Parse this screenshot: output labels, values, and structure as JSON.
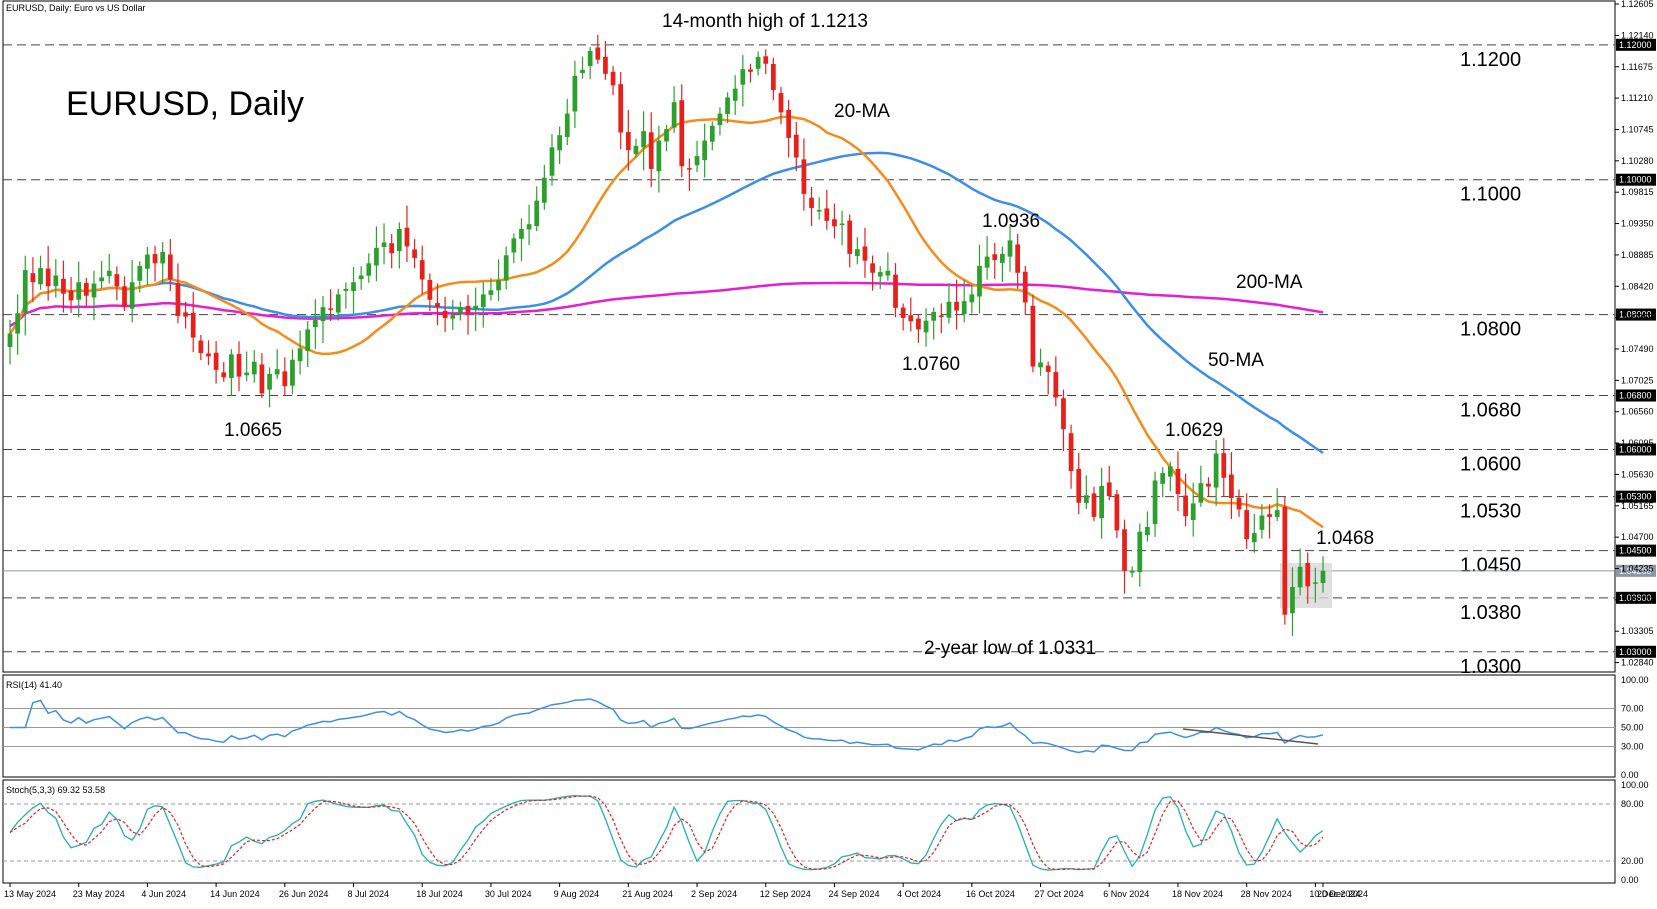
{
  "header": {
    "symbol_info": "EURUSD, Daily:  Euro vs US Dollar",
    "big_title": "EURUSD, Daily"
  },
  "chart_data": [
    {
      "type": "candlestick",
      "title": "EURUSD, Daily",
      "ylim": [
        1.027,
        1.1265
      ],
      "y_ticks": [
        "1.12605",
        "1.12140",
        "1.11675",
        "1.11210",
        "1.10745",
        "1.10280",
        "1.09815",
        "1.09350",
        "1.08885",
        "1.08420",
        "1.07955",
        "1.07490",
        "1.07025",
        "1.06560",
        "1.06095",
        "1.05630",
        "1.05165",
        "1.04700",
        "1.04235",
        "1.03770",
        "1.03305",
        "1.02840"
      ],
      "x_labels": [
        "13 May 2024",
        "23 May 2024",
        "4 Jun 2024",
        "14 Jun 2024",
        "26 Jun 2024",
        "8 Jul 2024",
        "18 Jul 2024",
        "30 Jul 2024",
        "9 Aug 2024",
        "21 Aug 2024",
        "2 Sep 2024",
        "12 Sep 2024",
        "24 Sep 2024",
        "4 Oct 2024",
        "16 Oct 2024",
        "27 Oct 2024",
        "6 Nov 2024",
        "18 Nov 2024",
        "28 Nov 2024",
        "10 Dec 2024",
        "20 Dec 2024"
      ],
      "levels": [
        {
          "value": 1.12,
          "label": "1.1200",
          "tag": "1.12000"
        },
        {
          "value": 1.1,
          "label": "1.1000",
          "tag": "1.10000"
        },
        {
          "value": 1.08,
          "label": "1.0800",
          "tag": "1.08000"
        },
        {
          "value": 1.068,
          "label": "1.0680",
          "tag": "1.06800"
        },
        {
          "value": 1.06,
          "label": "1.0600",
          "tag": "1.06000"
        },
        {
          "value": 1.053,
          "label": "1.0530",
          "tag": "1.05300"
        },
        {
          "value": 1.045,
          "label": "1.0450",
          "tag": "1.04500"
        },
        {
          "value": 1.038,
          "label": "1.0380",
          "tag": "1.03800"
        },
        {
          "value": 1.03,
          "label": "1.0300",
          "tag": "1.03000"
        }
      ],
      "current_price": {
        "value": 1.042,
        "tag": "1.04200"
      },
      "annotations": [
        {
          "text": "14-month high of 1.1213"
        },
        {
          "text": "20-MA"
        },
        {
          "text": "1.0936"
        },
        {
          "text": "200-MA"
        },
        {
          "text": "50-MA"
        },
        {
          "text": "1.0760"
        },
        {
          "text": "1.0665"
        },
        {
          "text": "1.0629"
        },
        {
          "text": "1.0468"
        },
        {
          "text": "2-year low of 1.0331"
        }
      ],
      "closes": [
        1.0772,
        1.0802,
        1.0866,
        1.0848,
        1.0869,
        1.0842,
        1.0858,
        1.0831,
        1.0821,
        1.0848,
        1.0828,
        1.0846,
        1.0855,
        1.0865,
        1.0842,
        1.0812,
        1.0848,
        1.0872,
        1.0889,
        1.0876,
        1.0893,
        1.0852,
        1.0798,
        1.0797,
        1.0766,
        1.0743,
        1.0738,
        1.0718,
        1.0707,
        1.0741,
        1.0708,
        1.0714,
        1.073,
        1.0683,
        1.0712,
        1.0719,
        1.0694,
        1.0733,
        1.075,
        1.0778,
        1.0792,
        1.0811,
        1.0808,
        1.083,
        1.0838,
        1.0848,
        1.0858,
        1.0876,
        1.0899,
        1.0907,
        1.0891,
        1.0927,
        1.0901,
        1.0884,
        1.0852,
        1.0822,
        1.0811,
        1.0795,
        1.0799,
        1.0811,
        1.0802,
        1.0813,
        1.083,
        1.0836,
        1.0851,
        1.0888,
        1.0913,
        1.0927,
        1.0934,
        1.0969,
        1.1003,
        1.1048,
        1.1066,
        1.1098,
        1.1154,
        1.1163,
        1.1191,
        1.1178,
        1.1157,
        1.114,
        1.107,
        1.1044,
        1.105,
        1.1072,
        1.1016,
        1.1058,
        1.1075,
        1.1115,
        1.102,
        1.1016,
        1.1035,
        1.1058,
        1.108,
        1.1098,
        1.1122,
        1.1135,
        1.1164,
        1.116,
        1.1182,
        1.1172,
        1.1133,
        1.11,
        1.1062,
        1.1033,
        1.0979,
        1.0958,
        1.0955,
        1.0939,
        1.0931,
        1.0935,
        1.089,
        1.0897,
        1.088,
        1.0862,
        1.0863,
        1.0865,
        1.081,
        1.0795,
        1.079,
        1.0778,
        1.0791,
        1.0804,
        1.0798,
        1.0819,
        1.0806,
        1.082,
        1.083,
        1.0872,
        1.0886,
        1.0881,
        1.089,
        1.091,
        1.0862,
        1.0818,
        1.0723,
        1.0729,
        1.0715,
        1.0677,
        1.063,
        1.0568,
        1.0521,
        1.0532,
        1.05,
        1.0546,
        1.0531,
        1.048,
        1.042,
        1.042,
        1.0478,
        1.0485,
        1.0554,
        1.0565,
        1.0575,
        1.0534,
        1.0501,
        1.052,
        1.055,
        1.0545,
        1.0594,
        1.0558,
        1.0528,
        1.0511,
        1.0467,
        1.0476,
        1.0502,
        1.05,
        1.051,
        1.0355,
        1.0396,
        1.0426,
        1.0397,
        1.0403,
        1.042
      ],
      "moving_averages": [
        {
          "name": "20-MA",
          "color": "#f58c1a"
        },
        {
          "name": "50-MA",
          "color": "#3d8fe6"
        },
        {
          "name": "200-MA",
          "color": "#e61ed2"
        }
      ],
      "candle_colors": {
        "up": "#2ca02c",
        "down": "#e8201b"
      }
    },
    {
      "type": "line",
      "title": "RSI(14) 41.40",
      "ylim": [
        0,
        100
      ],
      "y_ticks": [
        "100.00",
        "70.00",
        "50.00",
        "30.00",
        "0.00"
      ],
      "reference_lines": [
        70,
        50,
        30
      ],
      "series": [
        {
          "color": "#3d8fe6"
        }
      ]
    },
    {
      "type": "line",
      "title": "Stoch(5,3,3) 69.32 53.58",
      "ylim": [
        0,
        100
      ],
      "y_ticks": [
        "100.00",
        "80.00",
        "20.00",
        "0.00"
      ],
      "reference_lines": [
        80,
        20
      ],
      "series": [
        {
          "color": "#23b0b0"
        },
        {
          "color": "#e8201b"
        }
      ]
    }
  ]
}
